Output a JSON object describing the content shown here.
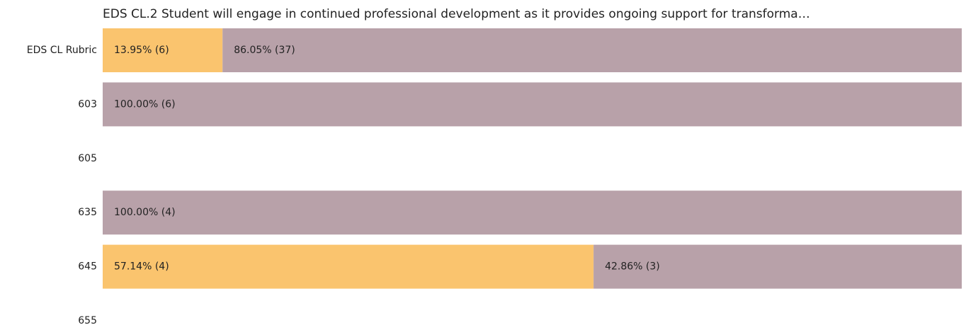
{
  "chart_data": {
    "type": "stacked-barh",
    "title": "EDS CL.2 Student will engage in continued professional development as it provides ongoing support for transforma…",
    "categories": [
      "EDS CL Rubric",
      "603",
      "605",
      "635",
      "645",
      "655"
    ],
    "xlim": [
      0,
      100
    ],
    "series": [
      {
        "color": "#fac46e",
        "values": [
          13.95,
          null,
          null,
          null,
          57.14,
          null
        ],
        "value_labels": [
          "13.95% (6)",
          null,
          null,
          null,
          "57.14% (4)",
          null
        ]
      },
      {
        "color": "#b8a1a9",
        "values": [
          86.05,
          100,
          null,
          100,
          42.86,
          null
        ],
        "value_labels": [
          "86.05% (37)",
          "100.00% (6)",
          null,
          "100.00% (4)",
          "42.86% (3)",
          null
        ]
      }
    ]
  }
}
